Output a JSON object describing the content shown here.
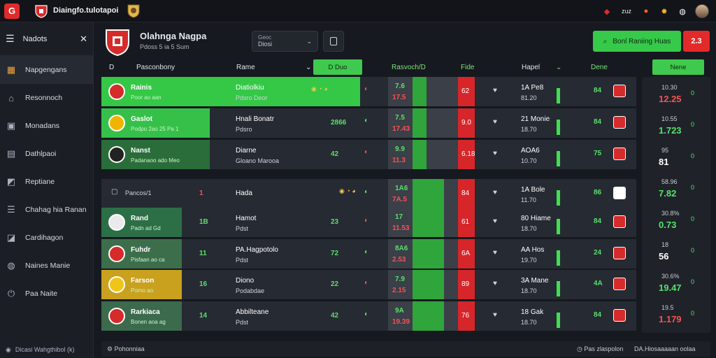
{
  "top": {
    "logo_letter": "G",
    "title": "Diaingfo.tulotapoi",
    "right_text": "zuz"
  },
  "sidebar": {
    "head_label": "Nadots",
    "items": [
      {
        "label": "Napgengans",
        "icon": "trophy-icon"
      },
      {
        "label": "Resonnoch",
        "icon": "home-icon"
      },
      {
        "label": "Monadans",
        "icon": "calendar-icon"
      },
      {
        "label": "Dathlpaoi",
        "icon": "document-icon"
      },
      {
        "label": "Reptiane",
        "icon": "chart-icon"
      },
      {
        "label": "Chahag hia Ranan",
        "icon": "list-icon"
      },
      {
        "label": "Cardihagon",
        "icon": "inbox-icon"
      },
      {
        "label": "Naines Manie",
        "icon": "globe-icon"
      },
      {
        "label": "Paa Naite",
        "icon": "power-icon"
      }
    ],
    "footer": "Dicasi Wahgthibol (k)"
  },
  "header": {
    "team_name": "Olahnga Nagpa",
    "team_sub": "Pdoss 5 ia 5 Sum",
    "season_label": "Geoc",
    "season_value": "Diosi",
    "green_button": "Bonl Raniing Huas",
    "red_button": "2.3"
  },
  "columns": {
    "c0": "D",
    "c1": "Pasconbony",
    "c2": "Rame",
    "c3_btn": "D Duo",
    "c4": "Rasvoch/D",
    "c5": "Fide",
    "c6": "Hapel",
    "c7": "Dene",
    "c8_btn": "Nene"
  },
  "rows": [
    {
      "name": "Rainis",
      "sub": "Poor ao aan",
      "mid": "Diatiolkiu",
      "mid2": "Pdsro Deor",
      "a": "",
      "b": "7.6",
      "b2": "17.5",
      "c": "62",
      "d": "1A Pe8",
      "d2": "81.20",
      "e": "84"
    },
    {
      "name": "Gaslot",
      "sub": "Podpo 2ao 25 Pa 1",
      "mid": "Hnali Bonatr",
      "mid2": "Pdsro",
      "a": "2866",
      "b": "7.5",
      "b2": "17.43",
      "c": "9.0",
      "d": "21 Monie",
      "d2": "18.70",
      "e": "84"
    },
    {
      "name": "Nanst",
      "sub": "Padanaoo ado Meo",
      "mid": "Diarne",
      "mid2": "Gloano Marooa",
      "a": "42",
      "b": "9.9",
      "b2": "11.3",
      "c": "6.18",
      "d": "AOA6",
      "d2": "10.70",
      "e": "75"
    },
    {
      "name": "Pancos/1",
      "sub": "",
      "mid": "Hada",
      "mid2": "",
      "a": "",
      "b": "1A6",
      "b2": "7A.5",
      "c": "84",
      "d": "1A Bole",
      "d2": "11.70",
      "e": "86"
    },
    {
      "name": "Rand",
      "sub": "Padn ad Gd",
      "mid": "Hamot",
      "mid2": "Pdst",
      "a": "23",
      "b": "17",
      "b2": "11.53",
      "c": "61",
      "d": "80 Hiame",
      "d2": "18.70",
      "e": "84"
    },
    {
      "name": "Fuhdr",
      "sub": "Pisfaan ao ca",
      "mid": "PA.Hagpotolo",
      "mid2": "Pdst",
      "a": "72",
      "b": "8A6",
      "b2": "2.53",
      "c": "6A",
      "d": "AA Hos",
      "d2": "19.70",
      "e": "24"
    },
    {
      "name": "Farson",
      "sub": "Pomo ao",
      "mid": "Diono",
      "mid2": "Podabdae",
      "a": "22",
      "b": "7.9",
      "b2": "2.15",
      "c": "89",
      "d": "3A Mane",
      "d2": "18.70",
      "e": "4A"
    },
    {
      "name": "Rarkiaca",
      "sub": "Bonen aoa ag",
      "mid": "Abbilteane",
      "mid2": "Pdst",
      "a": "42",
      "b": "9A",
      "b2": "19.39",
      "c": "76",
      "d": "18 Gak",
      "d2": "18.70",
      "e": "84"
    }
  ],
  "row_ranks": [
    "",
    "",
    "",
    "1",
    "1B",
    "11",
    "16",
    "14"
  ],
  "panel_right": [
    {
      "a": "10.30",
      "b": "12.25",
      "c": "0",
      "color": "#f25454"
    },
    {
      "a": "10.55",
      "b": "1.723",
      "c": "0",
      "color": "#58e06a"
    },
    {
      "a": "95",
      "b": "81",
      "c": "0",
      "color": "#ffffff"
    },
    {
      "a": "58.96",
      "b": "7.82",
      "c": "0",
      "color": "#58e06a"
    },
    {
      "a": "30.8%",
      "b": "0.73",
      "c": "0",
      "color": "#58e06a"
    },
    {
      "a": "18",
      "b": "56",
      "c": "0",
      "color": "#ffffff"
    },
    {
      "a": "30.6%",
      "b": "19.47",
      "c": "0",
      "color": "#58e06a"
    },
    {
      "a": "19.5",
      "b": "1.179",
      "c": "0",
      "color": "#f25454"
    }
  ],
  "bottom": {
    "left": "Pohonniaa",
    "right1": "Pas zlaspolon",
    "right2": "DA.Hiosaaaaan oolaa"
  },
  "colors": {
    "green": "#36c94a",
    "red": "#e32a2a",
    "bg": "#16191f"
  }
}
